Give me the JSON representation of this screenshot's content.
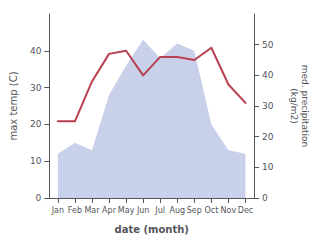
{
  "chart_data": {
    "type": "line",
    "categories": [
      "Jan",
      "Feb",
      "Mar",
      "Apr",
      "May",
      "Jun",
      "Jul",
      "Aug",
      "Sep",
      "Oct",
      "Nov",
      "Dec"
    ],
    "series": [
      {
        "type": "area",
        "color": "#c8d0ea",
        "values": [
          12,
          15,
          13,
          28,
          36,
          43,
          38,
          42,
          40,
          20,
          13,
          12
        ]
      },
      {
        "type": "line",
        "axis": "y2",
        "color": "#b84050",
        "values": [
          25,
          25,
          38,
          47,
          48,
          40,
          46,
          46,
          45,
          49,
          37,
          31
        ]
      }
    ],
    "xlabel": "date (month)",
    "ylabel": "max temp (C)",
    "y2label": "med. precipitation\n(kg/m2)",
    "ylim": [
      0,
      50
    ],
    "yticks": [
      0,
      10,
      20,
      30,
      40
    ],
    "y2lim": [
      0,
      60
    ],
    "y2ticks": [
      0,
      10,
      20,
      30,
      40,
      50
    ],
    "grid": false
  }
}
